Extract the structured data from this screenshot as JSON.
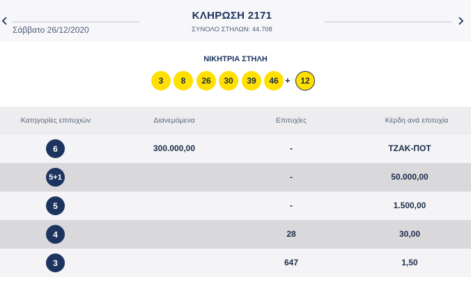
{
  "header": {
    "title": "ΚΛΗΡΩΣΗ 2171",
    "date": "Σάββατο 26/12/2020",
    "total_columns": "ΣΥΝΟΛΟ ΣΤΗΛΩΝ: 44.708",
    "prev_icon": "chevron-left-icon",
    "next_icon": "chevron-right-icon"
  },
  "winning": {
    "label": "ΝΙΚΗΤΡΙΑ ΣΤΗΛΗ",
    "numbers": [
      "3",
      "8",
      "26",
      "30",
      "39",
      "46"
    ],
    "plus": "+",
    "joker": "12",
    "ball_color": "#ffe000"
  },
  "table": {
    "headers": {
      "category": "Κατηγορίες επιτυχιών",
      "distributed": "Διανεμόμενα",
      "wins": "Επιτυχίες",
      "prize": "Κέρδη ανά επιτυχία"
    },
    "rows": [
      {
        "category": "6",
        "distributed": "300.000,00",
        "wins": "-",
        "prize": "ΤΖΑΚ-ΠΟΤ"
      },
      {
        "category": "5+1",
        "distributed": "",
        "wins": "-",
        "prize": "50.000,00"
      },
      {
        "category": "5",
        "distributed": "",
        "wins": "-",
        "prize": "1.500,00"
      },
      {
        "category": "4",
        "distributed": "",
        "wins": "28",
        "prize": "30,00"
      },
      {
        "category": "3",
        "distributed": "",
        "wins": "647",
        "prize": "1,50"
      }
    ]
  },
  "colors": {
    "navy": "#1d3461",
    "row_light": "#f4f4f6",
    "row_dark": "#d9d9dc"
  }
}
